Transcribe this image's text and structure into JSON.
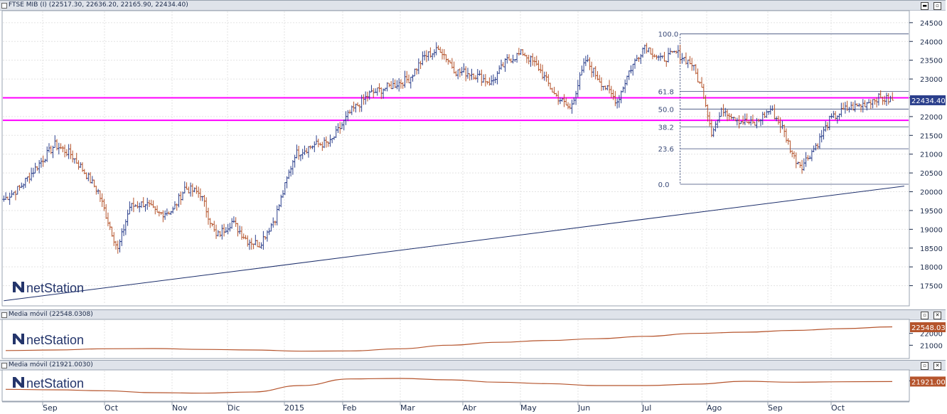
{
  "panes": {
    "main": {
      "title": "FTSE MIB (I) (22517.30, 22636.20, 22165.90, 22434.40)",
      "last_tag": "22434.40"
    },
    "ma1": {
      "title": "Media móvil (22548.0308)",
      "last_tag": "22548.03"
    },
    "ma2": {
      "title": "Media móvil (21921.0030)",
      "last_tag": "21921.00"
    }
  },
  "window_buttons": {
    "minimize": "▬",
    "maximize": "▫",
    "close": "✕"
  },
  "logo": {
    "text": "netStation"
  },
  "colors": {
    "bar_up": "#2b3f8c",
    "bar_down": "#b5542c",
    "horizontal_lines": "#ff00ff",
    "trendline": "#1c2e6b",
    "fib_lines": "#3a4a78",
    "ma_line": "#b5542c",
    "tag_main": "#2b3f8c",
    "tag_ma": "#b5542c",
    "grid": "#e3e3e3"
  },
  "chart_data": [
    {
      "type": "ohlc",
      "title": "FTSE MIB (I) (22517.30, 22636.20, 22165.90, 22434.40)",
      "x_axis": {
        "months": [
          "Sep",
          "Oct",
          "Nov",
          "Dic",
          "2015",
          "Feb",
          "Mar",
          "Abr",
          "May",
          "Jun",
          "Jul",
          "Ago",
          "Sep",
          "Oct"
        ]
      },
      "y_axis": {
        "ylim": [
          17000,
          24800
        ],
        "ticks": [
          17500,
          18000,
          18500,
          19000,
          19500,
          20000,
          20500,
          21000,
          21500,
          22000,
          22500,
          23000,
          23500,
          24000,
          24500
        ]
      },
      "grid": true,
      "close_anchors": [
        [
          0,
          19800
        ],
        [
          8,
          20100
        ],
        [
          18,
          20750
        ],
        [
          26,
          21250
        ],
        [
          34,
          21000
        ],
        [
          40,
          20600
        ],
        [
          48,
          20000
        ],
        [
          58,
          18450
        ],
        [
          64,
          19600
        ],
        [
          72,
          19700
        ],
        [
          78,
          19400
        ],
        [
          86,
          19500
        ],
        [
          92,
          20100
        ],
        [
          100,
          19950
        ],
        [
          108,
          18800
        ],
        [
          116,
          19200
        ],
        [
          124,
          18700
        ],
        [
          130,
          18600
        ],
        [
          138,
          19300
        ],
        [
          148,
          21000
        ],
        [
          158,
          21250
        ],
        [
          166,
          21300
        ],
        [
          176,
          22100
        ],
        [
          186,
          22600
        ],
        [
          196,
          22800
        ],
        [
          206,
          23000
        ],
        [
          214,
          23600
        ],
        [
          222,
          23800
        ],
        [
          230,
          23200
        ],
        [
          238,
          23150
        ],
        [
          248,
          22900
        ],
        [
          256,
          23500
        ],
        [
          264,
          23700
        ],
        [
          272,
          23300
        ],
        [
          280,
          22600
        ],
        [
          288,
          22200
        ],
        [
          296,
          23500
        ],
        [
          304,
          22900
        ],
        [
          312,
          22400
        ],
        [
          318,
          23200
        ],
        [
          326,
          23900
        ],
        [
          334,
          23500
        ],
        [
          342,
          23700
        ],
        [
          350,
          23400
        ],
        [
          356,
          22600
        ],
        [
          360,
          21600
        ],
        [
          366,
          22200
        ],
        [
          374,
          21900
        ],
        [
          382,
          21800
        ],
        [
          390,
          22200
        ],
        [
          396,
          21700
        ],
        [
          402,
          20900
        ],
        [
          406,
          20700
        ],
        [
          414,
          21300
        ],
        [
          420,
          21900
        ],
        [
          428,
          22200
        ],
        [
          436,
          22300
        ],
        [
          444,
          22500
        ],
        [
          452,
          22434
        ]
      ],
      "horizontal_lines": [
        22500,
        21900
      ],
      "trendline": {
        "from": {
          "bar": 0,
          "value": 17100
        },
        "to": {
          "bar": 458,
          "value": 20150
        }
      },
      "fibonacci": {
        "high": 24200,
        "low": 20200,
        "start_bar": 344,
        "levels": [
          {
            "label": "100.0",
            "value": 24200
          },
          {
            "label": "61.8",
            "value": 22672
          },
          {
            "label": "50.0",
            "value": 22200
          },
          {
            "label": "38.2",
            "value": 21728
          },
          {
            "label": "23.6",
            "value": 21144
          },
          {
            "label": "0.0",
            "value": 20200
          }
        ]
      },
      "last_value": 22434.4
    },
    {
      "type": "line",
      "title": "Media móvil (22548.0308)",
      "y_axis": {
        "ylim": [
          20000,
          23000
        ],
        "ticks": [
          21000,
          22000
        ]
      },
      "grid": true,
      "series": [
        {
          "name": "Media móvil",
          "values": [
            20550,
            20600,
            20700,
            20720,
            20650,
            20600,
            20500,
            20520,
            20700,
            21000,
            21250,
            21400,
            21550,
            21750,
            22000,
            22100,
            22250,
            22400,
            22548
          ]
        }
      ],
      "last_value": 22548.03
    },
    {
      "type": "line",
      "title": "Media móvil (21921.0030)",
      "y_axis": {
        "ylim": [
          20000,
          23000
        ],
        "ticks": [
          22000
        ]
      },
      "grid": true,
      "series": [
        {
          "name": "Media móvil",
          "values": [
            21100,
            21050,
            20950,
            20750,
            20700,
            20820,
            21500,
            22200,
            22250,
            22100,
            21850,
            21700,
            21500,
            21500,
            21650,
            21950,
            21850,
            21900,
            21921
          ]
        }
      ],
      "last_value": 21921.0
    }
  ]
}
